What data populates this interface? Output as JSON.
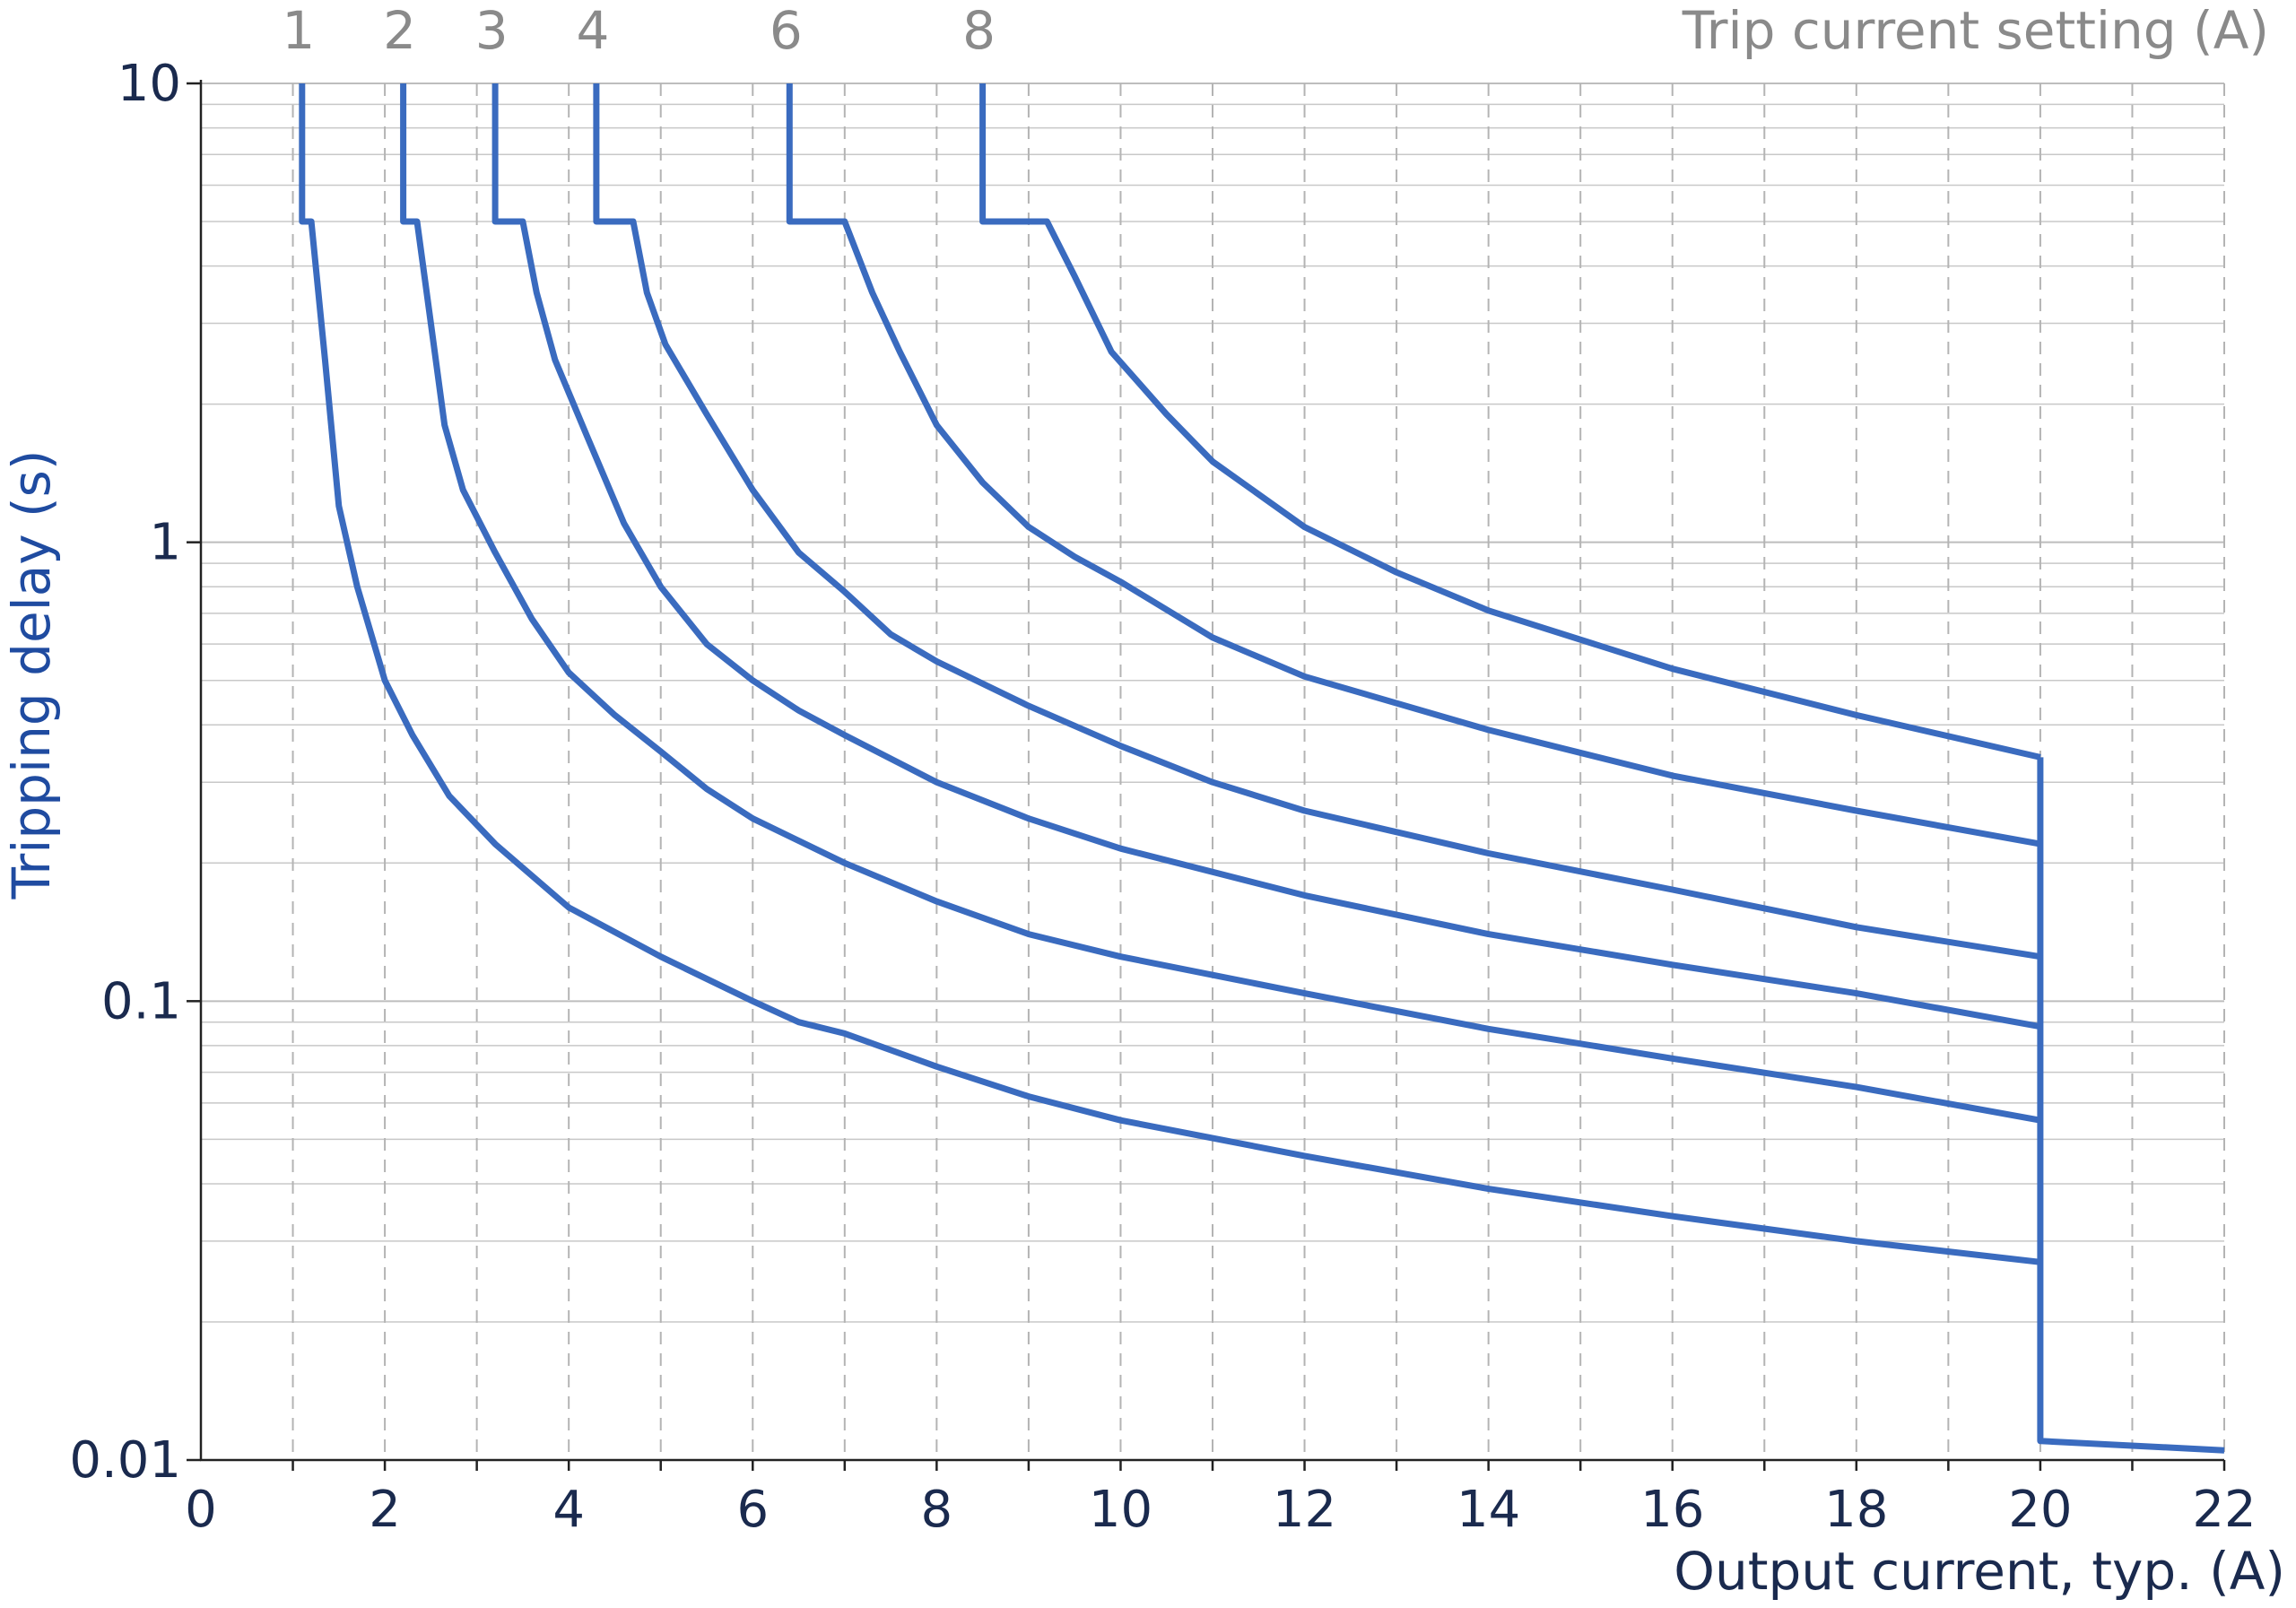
{
  "chart_data": {
    "type": "line",
    "xlabel": "Output current, typ. (A)",
    "ylabel": "Tripping delay (s)",
    "top_axis_label": "Trip current setting (A)",
    "xlim": [
      0,
      22
    ],
    "ylim": [
      0.01,
      10
    ],
    "y_scale": "log",
    "grid": true,
    "x_ticks": [
      0,
      2,
      4,
      6,
      8,
      10,
      12,
      14,
      16,
      18,
      20,
      22
    ],
    "x_tick_labels": [
      "0",
      "2",
      "4",
      "6",
      "8",
      "10",
      "12",
      "14",
      "16",
      "18",
      "20",
      "22"
    ],
    "y_ticks": [
      0.01,
      0.1,
      1,
      10
    ],
    "y_tick_labels": [
      "0.01",
      "0.1",
      "1",
      "10"
    ],
    "top_ticks": [
      1.1,
      2.2,
      3.2,
      4.3,
      6.4,
      8.5
    ],
    "top_tick_labels": [
      "1",
      "2",
      "3",
      "4",
      "6",
      "8"
    ],
    "line_color": "#3a6bbf",
    "series": [
      {
        "setting": "1",
        "points": [
          [
            1.1,
            10
          ],
          [
            1.1,
            5
          ],
          [
            1.2,
            5
          ],
          [
            1.35,
            2.5
          ],
          [
            1.5,
            1.2
          ],
          [
            1.7,
            0.8
          ],
          [
            2.0,
            0.5
          ],
          [
            2.3,
            0.38
          ],
          [
            2.7,
            0.28
          ],
          [
            3.2,
            0.22
          ],
          [
            4.0,
            0.16
          ],
          [
            5.0,
            0.125
          ],
          [
            6.0,
            0.1
          ],
          [
            6.5,
            0.09
          ],
          [
            7.0,
            0.085
          ],
          [
            8.0,
            0.072
          ],
          [
            9.0,
            0.062
          ],
          [
            10.0,
            0.055
          ],
          [
            12.0,
            0.046
          ],
          [
            14.0,
            0.039
          ],
          [
            16.0,
            0.034
          ],
          [
            18.0,
            0.03
          ],
          [
            20.0,
            0.027
          ]
        ]
      },
      {
        "setting": "2",
        "points": [
          [
            2.2,
            10
          ],
          [
            2.2,
            5
          ],
          [
            2.35,
            5
          ],
          [
            2.5,
            3.0
          ],
          [
            2.65,
            1.8
          ],
          [
            2.85,
            1.3
          ],
          [
            3.2,
            0.95
          ],
          [
            3.6,
            0.68
          ],
          [
            4.0,
            0.52
          ],
          [
            4.5,
            0.42
          ],
          [
            5.0,
            0.35
          ],
          [
            5.5,
            0.29
          ],
          [
            6.0,
            0.25
          ],
          [
            7.0,
            0.2
          ],
          [
            8.0,
            0.165
          ],
          [
            9.0,
            0.14
          ],
          [
            10.0,
            0.125
          ],
          [
            12.0,
            0.104
          ],
          [
            14.0,
            0.087
          ],
          [
            16.0,
            0.075
          ],
          [
            18.0,
            0.065
          ],
          [
            20.0,
            0.055
          ]
        ]
      },
      {
        "setting": "3",
        "points": [
          [
            3.2,
            10
          ],
          [
            3.2,
            5
          ],
          [
            3.5,
            5
          ],
          [
            3.65,
            3.5
          ],
          [
            3.85,
            2.5
          ],
          [
            4.2,
            1.7
          ],
          [
            4.6,
            1.1
          ],
          [
            5.0,
            0.8
          ],
          [
            5.5,
            0.6
          ],
          [
            6.0,
            0.5
          ],
          [
            6.5,
            0.43
          ],
          [
            7.0,
            0.38
          ],
          [
            8.0,
            0.3
          ],
          [
            9.0,
            0.25
          ],
          [
            10.0,
            0.215
          ],
          [
            12.0,
            0.17
          ],
          [
            14.0,
            0.14
          ],
          [
            16.0,
            0.12
          ],
          [
            18.0,
            0.104
          ],
          [
            20.0,
            0.088
          ]
        ]
      },
      {
        "setting": "4",
        "points": [
          [
            4.3,
            10
          ],
          [
            4.3,
            5
          ],
          [
            4.7,
            5
          ],
          [
            4.85,
            3.5
          ],
          [
            5.05,
            2.7
          ],
          [
            5.5,
            1.9
          ],
          [
            6.0,
            1.3
          ],
          [
            6.5,
            0.95
          ],
          [
            7.0,
            0.78
          ],
          [
            7.5,
            0.63
          ],
          [
            8.0,
            0.55
          ],
          [
            9.0,
            0.44
          ],
          [
            10.0,
            0.36
          ],
          [
            11.0,
            0.3
          ],
          [
            12.0,
            0.26
          ],
          [
            14.0,
            0.21
          ],
          [
            16.0,
            0.175
          ],
          [
            18.0,
            0.145
          ],
          [
            20.0,
            0.125
          ]
        ]
      },
      {
        "setting": "6",
        "points": [
          [
            6.4,
            10
          ],
          [
            6.4,
            5
          ],
          [
            7.0,
            5
          ],
          [
            7.3,
            3.5
          ],
          [
            7.6,
            2.6
          ],
          [
            8.0,
            1.8
          ],
          [
            8.5,
            1.35
          ],
          [
            9.0,
            1.08
          ],
          [
            9.5,
            0.93
          ],
          [
            10.0,
            0.82
          ],
          [
            11.0,
            0.62
          ],
          [
            12.0,
            0.51
          ],
          [
            14.0,
            0.39
          ],
          [
            16.0,
            0.31
          ],
          [
            18.0,
            0.26
          ],
          [
            20.0,
            0.22
          ]
        ]
      },
      {
        "setting": "8",
        "points": [
          [
            8.5,
            10
          ],
          [
            8.5,
            5
          ],
          [
            9.2,
            5
          ],
          [
            9.5,
            3.8
          ],
          [
            9.9,
            2.6
          ],
          [
            10.5,
            1.9
          ],
          [
            11.0,
            1.5
          ],
          [
            12.0,
            1.08
          ],
          [
            13.0,
            0.86
          ],
          [
            14.0,
            0.71
          ],
          [
            16.0,
            0.53
          ],
          [
            18.0,
            0.42
          ],
          [
            20.0,
            0.34
          ]
        ]
      },
      {
        "setting": "cutoff",
        "points": [
          [
            20.0,
            0.34
          ],
          [
            20.0,
            0.011
          ],
          [
            22.0,
            0.0105
          ]
        ]
      }
    ]
  }
}
